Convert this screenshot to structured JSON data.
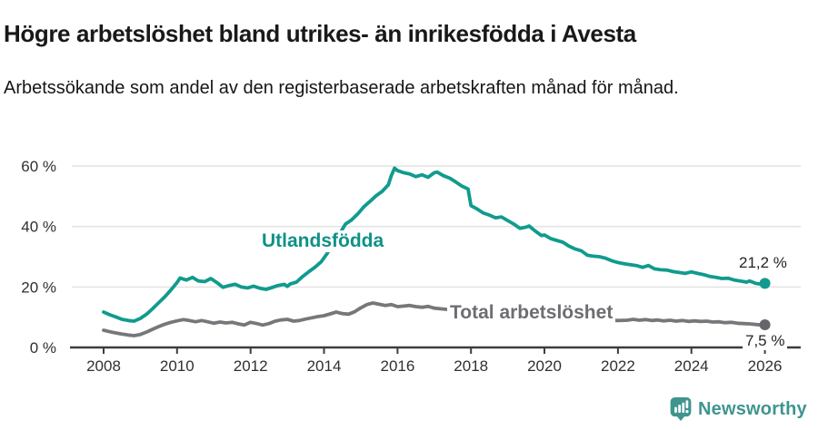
{
  "header": {
    "title": "Högre arbetslöshet bland utrikes- än inrikesfödda i Avesta",
    "subtitle": "Arbetssökande som andel av den registerbaserade arbetskraften månad för månad."
  },
  "chart_data": {
    "type": "line",
    "unit": "%",
    "grid": "horizontal",
    "x_axis": {
      "range": [
        2008,
        2027
      ],
      "ticks": [
        {
          "value": 2008,
          "label": "2008"
        },
        {
          "value": 2010,
          "label": "2010"
        },
        {
          "value": 2012,
          "label": "2012"
        },
        {
          "value": 2014,
          "label": "2014"
        },
        {
          "value": 2016,
          "label": "2016"
        },
        {
          "value": 2018,
          "label": "2018"
        },
        {
          "value": 2020,
          "label": "2020"
        },
        {
          "value": 2022,
          "label": "2022"
        },
        {
          "value": 2024,
          "label": "2024"
        },
        {
          "value": 2026,
          "label": "2026"
        }
      ]
    },
    "y_axis": {
      "range": [
        0,
        62
      ],
      "ticks": [
        {
          "value": 0,
          "label": "0 %"
        },
        {
          "value": 20,
          "label": "20 %"
        },
        {
          "value": 40,
          "label": "40 %"
        },
        {
          "value": 60,
          "label": "60 %"
        }
      ]
    },
    "series": [
      {
        "id": "utlandsfodda",
        "name": "Utlandsfödda",
        "color": "#109b8e",
        "end_label": "21,2 %",
        "end_value": 21.2,
        "points": [
          [
            2008.0,
            11.7
          ],
          [
            2008.17,
            10.8
          ],
          [
            2008.33,
            10.1
          ],
          [
            2008.5,
            9.3
          ],
          [
            2008.67,
            8.9
          ],
          [
            2008.83,
            8.7
          ],
          [
            2009.0,
            9.6
          ],
          [
            2009.17,
            11.0
          ],
          [
            2009.33,
            12.8
          ],
          [
            2009.5,
            14.8
          ],
          [
            2009.67,
            16.8
          ],
          [
            2009.83,
            19.0
          ],
          [
            2010.0,
            21.5
          ],
          [
            2010.08,
            23.0
          ],
          [
            2010.25,
            22.3
          ],
          [
            2010.42,
            23.2
          ],
          [
            2010.58,
            22.0
          ],
          [
            2010.75,
            21.8
          ],
          [
            2010.92,
            22.8
          ],
          [
            2011.08,
            21.5
          ],
          [
            2011.25,
            19.9
          ],
          [
            2011.42,
            20.5
          ],
          [
            2011.58,
            20.9
          ],
          [
            2011.75,
            20.0
          ],
          [
            2011.92,
            19.7
          ],
          [
            2012.08,
            20.3
          ],
          [
            2012.25,
            19.6
          ],
          [
            2012.42,
            19.2
          ],
          [
            2012.58,
            19.8
          ],
          [
            2012.75,
            20.5
          ],
          [
            2012.92,
            20.9
          ],
          [
            2013.0,
            20.2
          ],
          [
            2013.08,
            21.0
          ],
          [
            2013.25,
            21.6
          ],
          [
            2013.42,
            23.5
          ],
          [
            2013.58,
            25.0
          ],
          [
            2013.75,
            26.5
          ],
          [
            2013.92,
            28.3
          ],
          [
            2014.08,
            31.0
          ],
          [
            2014.25,
            34.5
          ],
          [
            2014.42,
            37.5
          ],
          [
            2014.58,
            40.8
          ],
          [
            2014.75,
            42.2
          ],
          [
            2014.92,
            44.2
          ],
          [
            2015.08,
            46.5
          ],
          [
            2015.25,
            48.3
          ],
          [
            2015.42,
            50.2
          ],
          [
            2015.58,
            51.6
          ],
          [
            2015.75,
            53.8
          ],
          [
            2015.83,
            56.8
          ],
          [
            2015.92,
            59.3
          ],
          [
            2016.0,
            58.5
          ],
          [
            2016.17,
            57.8
          ],
          [
            2016.33,
            57.4
          ],
          [
            2016.5,
            56.5
          ],
          [
            2016.67,
            57.1
          ],
          [
            2016.83,
            56.3
          ],
          [
            2017.0,
            57.8
          ],
          [
            2017.08,
            58.0
          ],
          [
            2017.25,
            56.8
          ],
          [
            2017.42,
            56.0
          ],
          [
            2017.58,
            54.8
          ],
          [
            2017.75,
            53.4
          ],
          [
            2017.92,
            52.4
          ],
          [
            2018.0,
            46.9
          ],
          [
            2018.17,
            45.8
          ],
          [
            2018.33,
            44.5
          ],
          [
            2018.5,
            43.8
          ],
          [
            2018.67,
            42.9
          ],
          [
            2018.83,
            43.2
          ],
          [
            2019.0,
            42.0
          ],
          [
            2019.17,
            40.8
          ],
          [
            2019.33,
            39.4
          ],
          [
            2019.5,
            39.8
          ],
          [
            2019.58,
            40.2
          ],
          [
            2019.75,
            38.5
          ],
          [
            2019.92,
            37.0
          ],
          [
            2020.0,
            37.2
          ],
          [
            2020.17,
            36.0
          ],
          [
            2020.33,
            35.4
          ],
          [
            2020.5,
            34.8
          ],
          [
            2020.67,
            33.5
          ],
          [
            2020.83,
            32.6
          ],
          [
            2021.0,
            32.0
          ],
          [
            2021.17,
            30.5
          ],
          [
            2021.33,
            30.2
          ],
          [
            2021.5,
            30.0
          ],
          [
            2021.67,
            29.5
          ],
          [
            2021.83,
            28.7
          ],
          [
            2022.0,
            28.1
          ],
          [
            2022.17,
            27.7
          ],
          [
            2022.33,
            27.4
          ],
          [
            2022.5,
            27.1
          ],
          [
            2022.67,
            26.5
          ],
          [
            2022.83,
            27.1
          ],
          [
            2023.0,
            26.0
          ],
          [
            2023.17,
            25.7
          ],
          [
            2023.33,
            25.6
          ],
          [
            2023.5,
            25.1
          ],
          [
            2023.67,
            24.8
          ],
          [
            2023.83,
            24.5
          ],
          [
            2024.0,
            25.0
          ],
          [
            2024.17,
            24.5
          ],
          [
            2024.33,
            24.1
          ],
          [
            2024.5,
            23.5
          ],
          [
            2024.67,
            23.2
          ],
          [
            2024.83,
            22.8
          ],
          [
            2025.0,
            22.9
          ],
          [
            2025.17,
            22.3
          ],
          [
            2025.33,
            22.0
          ],
          [
            2025.5,
            21.6
          ],
          [
            2025.58,
            22.0
          ],
          [
            2025.75,
            21.2
          ],
          [
            2025.92,
            20.9
          ],
          [
            2026.0,
            21.2
          ]
        ]
      },
      {
        "id": "total",
        "name": "Total arbetslöshet",
        "color": "#76777a",
        "dot_color": "#65666a",
        "end_label": "7,5 %",
        "end_value": 7.5,
        "points": [
          [
            2008.0,
            5.7
          ],
          [
            2008.17,
            5.2
          ],
          [
            2008.33,
            4.8
          ],
          [
            2008.5,
            4.4
          ],
          [
            2008.67,
            4.1
          ],
          [
            2008.83,
            3.9
          ],
          [
            2009.0,
            4.3
          ],
          [
            2009.17,
            5.1
          ],
          [
            2009.33,
            6.0
          ],
          [
            2009.5,
            6.9
          ],
          [
            2009.67,
            7.7
          ],
          [
            2009.83,
            8.3
          ],
          [
            2010.0,
            8.8
          ],
          [
            2010.17,
            9.2
          ],
          [
            2010.33,
            8.9
          ],
          [
            2010.5,
            8.5
          ],
          [
            2010.67,
            8.9
          ],
          [
            2010.83,
            8.5
          ],
          [
            2011.0,
            8.0
          ],
          [
            2011.17,
            8.4
          ],
          [
            2011.33,
            8.1
          ],
          [
            2011.5,
            8.3
          ],
          [
            2011.67,
            7.8
          ],
          [
            2011.83,
            7.4
          ],
          [
            2012.0,
            8.3
          ],
          [
            2012.17,
            7.9
          ],
          [
            2012.33,
            7.4
          ],
          [
            2012.5,
            7.9
          ],
          [
            2012.67,
            8.7
          ],
          [
            2012.83,
            9.1
          ],
          [
            2013.0,
            9.3
          ],
          [
            2013.17,
            8.7
          ],
          [
            2013.33,
            8.9
          ],
          [
            2013.5,
            9.4
          ],
          [
            2013.67,
            9.8
          ],
          [
            2013.83,
            10.2
          ],
          [
            2014.0,
            10.5
          ],
          [
            2014.17,
            11.1
          ],
          [
            2014.33,
            11.7
          ],
          [
            2014.5,
            11.2
          ],
          [
            2014.67,
            11.0
          ],
          [
            2014.83,
            11.8
          ],
          [
            2015.0,
            13.1
          ],
          [
            2015.17,
            14.2
          ],
          [
            2015.33,
            14.7
          ],
          [
            2015.5,
            14.3
          ],
          [
            2015.67,
            13.9
          ],
          [
            2015.83,
            14.2
          ],
          [
            2016.0,
            13.5
          ],
          [
            2016.17,
            13.7
          ],
          [
            2016.33,
            13.9
          ],
          [
            2016.5,
            13.5
          ],
          [
            2016.67,
            13.3
          ],
          [
            2016.83,
            13.6
          ],
          [
            2017.0,
            13.0
          ],
          [
            2017.17,
            12.8
          ],
          [
            2017.33,
            12.6
          ],
          [
            2017.5,
            12.3
          ],
          [
            2017.75,
            11.9
          ],
          [
            2018.0,
            11.4
          ],
          [
            2018.25,
            11.0
          ],
          [
            2018.5,
            10.7
          ],
          [
            2018.75,
            10.4
          ],
          [
            2019.0,
            10.2
          ],
          [
            2019.25,
            10.0
          ],
          [
            2019.5,
            9.8
          ],
          [
            2019.75,
            9.9
          ],
          [
            2020.0,
            10.2
          ],
          [
            2020.25,
            10.4
          ],
          [
            2020.5,
            10.1
          ],
          [
            2020.75,
            9.8
          ],
          [
            2021.0,
            9.6
          ],
          [
            2021.25,
            9.3
          ],
          [
            2021.5,
            9.1
          ],
          [
            2021.75,
            9.0
          ],
          [
            2022.0,
            8.9
          ],
          [
            2022.25,
            9.0
          ],
          [
            2022.42,
            9.3
          ],
          [
            2022.58,
            9.0
          ],
          [
            2022.75,
            9.2
          ],
          [
            2022.92,
            8.9
          ],
          [
            2023.08,
            9.1
          ],
          [
            2023.25,
            8.8
          ],
          [
            2023.42,
            9.0
          ],
          [
            2023.58,
            8.7
          ],
          [
            2023.75,
            8.9
          ],
          [
            2023.92,
            8.6
          ],
          [
            2024.08,
            8.8
          ],
          [
            2024.25,
            8.6
          ],
          [
            2024.42,
            8.7
          ],
          [
            2024.58,
            8.4
          ],
          [
            2024.75,
            8.5
          ],
          [
            2024.92,
            8.2
          ],
          [
            2025.08,
            8.3
          ],
          [
            2025.25,
            8.0
          ],
          [
            2025.42,
            7.9
          ],
          [
            2025.58,
            7.8
          ],
          [
            2025.75,
            7.6
          ],
          [
            2025.92,
            7.4
          ],
          [
            2026.0,
            7.5
          ]
        ]
      }
    ]
  },
  "footer": {
    "brand": "Newsworthy",
    "brand_color": "#3f958e"
  }
}
